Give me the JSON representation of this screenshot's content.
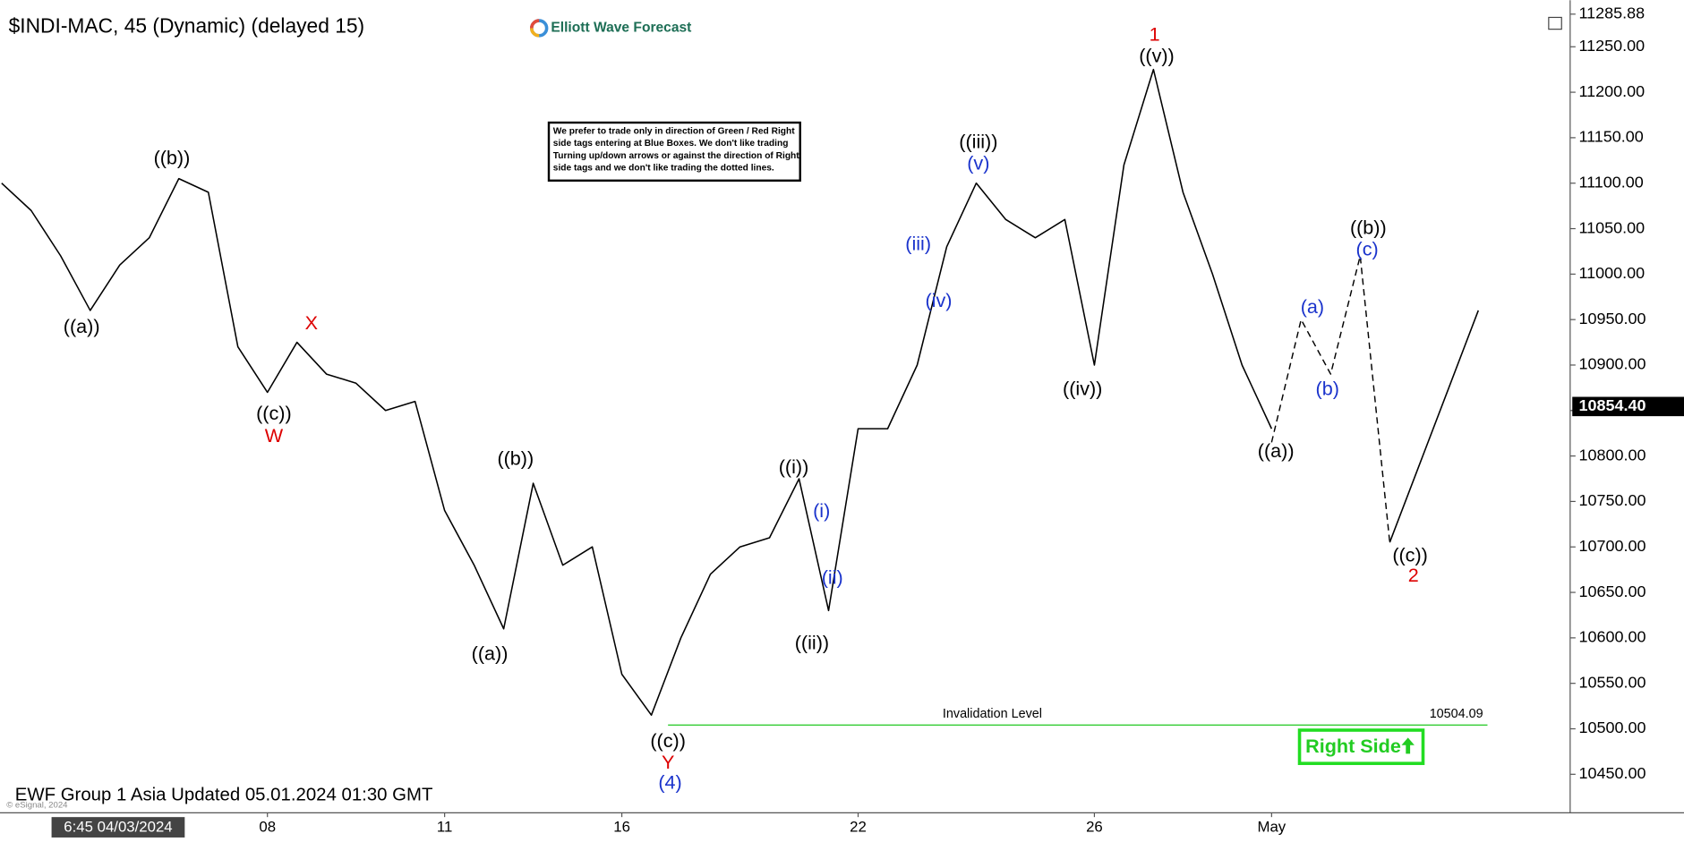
{
  "chart_data": {
    "type": "line",
    "title": "$INDI-MAC, 45 (Dynamic) (delayed 15)",
    "logo": "Elliott Wave Forecast",
    "note_lines": [
      "We prefer to trade only in direction of Green / Red Right",
      "side tags entering at Blue Boxes. We don't like trading",
      "Turning up/down arrows or against the direction of Right",
      "side tags and we don't like trading the dotted lines."
    ],
    "categories": [
      null,
      null,
      null,
      null,
      null,
      null,
      null,
      null,
      null,
      "08",
      null,
      null,
      null,
      null,
      null,
      "11",
      null,
      null,
      null,
      null,
      null,
      "16",
      null,
      null,
      null,
      null,
      null,
      null,
      null,
      "22",
      null,
      null,
      null,
      null,
      null,
      null,
      null,
      "26",
      null,
      null,
      null,
      null,
      null,
      "May",
      null,
      null,
      null,
      null,
      null,
      null,
      null,
      null,
      null
    ],
    "series": [
      {
        "color": "#000000",
        "dash": false,
        "values": [
          11100,
          11070,
          11020,
          10960,
          11010,
          11040,
          11105,
          11090,
          10920,
          10870,
          10925,
          10890,
          10880,
          10850,
          10860,
          10740,
          10680,
          10610,
          10770,
          10680,
          10700,
          10560,
          10515,
          10600,
          10670,
          10700,
          10710,
          10775,
          10630,
          10830,
          10830,
          10900,
          11030,
          11100,
          11060,
          11040,
          11060,
          10900,
          11120,
          11225,
          11090,
          11000,
          10900,
          10830,
          null,
          null,
          null,
          null,
          null,
          null,
          null,
          null,
          null
        ]
      },
      {
        "color": "#000000",
        "dash": true,
        "values": [
          null,
          null,
          null,
          null,
          null,
          null,
          null,
          null,
          null,
          null,
          null,
          null,
          null,
          null,
          null,
          null,
          null,
          null,
          null,
          null,
          null,
          null,
          null,
          null,
          null,
          null,
          null,
          null,
          null,
          null,
          null,
          null,
          null,
          null,
          null,
          null,
          null,
          null,
          null,
          null,
          null,
          null,
          null,
          10815,
          10950,
          10890,
          11020,
          10705,
          null,
          null,
          null,
          null,
          null
        ]
      },
      {
        "color": "#000000",
        "dash": false,
        "values": [
          null,
          null,
          null,
          null,
          null,
          null,
          null,
          null,
          null,
          null,
          null,
          null,
          null,
          null,
          null,
          null,
          null,
          null,
          null,
          null,
          null,
          null,
          null,
          null,
          null,
          null,
          null,
          null,
          null,
          null,
          null,
          null,
          null,
          null,
          null,
          null,
          null,
          null,
          null,
          null,
          null,
          null,
          null,
          null,
          null,
          null,
          null,
          10705,
          10790,
          10875,
          10960,
          null,
          null
        ]
      }
    ],
    "ylim": [
      10410,
      11300
    ],
    "yticks": [
      {
        "value": 10450,
        "label": "10450.00"
      },
      {
        "value": 10500,
        "label": "10500.00"
      },
      {
        "value": 10550,
        "label": "10550.00"
      },
      {
        "value": 10600,
        "label": "10600.00"
      },
      {
        "value": 10650,
        "label": "10650.00"
      },
      {
        "value": 10700,
        "label": "10700.00"
      },
      {
        "value": 10750,
        "label": "10750.00"
      },
      {
        "value": 10800,
        "label": "10800.00"
      },
      {
        "value": 10850,
        "label": "10850.00"
      },
      {
        "value": 10900,
        "label": "10900.00"
      },
      {
        "value": 10950,
        "label": "10950.00"
      },
      {
        "value": 11000,
        "label": "11000.00"
      },
      {
        "value": 11050,
        "label": "11050.00"
      },
      {
        "value": 11100,
        "label": "11100.00"
      },
      {
        "value": 11150,
        "label": "11150.00"
      },
      {
        "value": 11200,
        "label": "11200.00"
      },
      {
        "value": 11250,
        "label": "11250.00"
      }
    ],
    "high_price": 11285.88,
    "last_price": {
      "value": 10854.4,
      "label": "10854.40"
    },
    "invalidation": {
      "text": "Invalidation Level",
      "value": 10504.09,
      "color": "#33cc33"
    },
    "right_side": "Right Side",
    "wave_labels": [
      {
        "text": "((a))",
        "color": "#000000"
      },
      {
        "text": "((b))",
        "color": "#000000"
      },
      {
        "text": "((c))",
        "color": "#000000"
      },
      {
        "text": "W",
        "color": "#dd0000"
      },
      {
        "text": "X",
        "color": "#dd0000"
      },
      {
        "text": "((a))",
        "color": "#000000"
      },
      {
        "text": "((b))",
        "color": "#000000"
      },
      {
        "text": "((c))",
        "color": "#000000"
      },
      {
        "text": "Y",
        "color": "#dd0000"
      },
      {
        "text": "(4)",
        "color": "#1a33cc"
      },
      {
        "text": "((i))",
        "color": "#000000"
      },
      {
        "text": "((ii))",
        "color": "#000000"
      },
      {
        "text": "(i)",
        "color": "#1a33cc"
      },
      {
        "text": "(ii)",
        "color": "#1a33cc"
      },
      {
        "text": "(iii)",
        "color": "#1a33cc"
      },
      {
        "text": "(iv)",
        "color": "#1a33cc"
      },
      {
        "text": "(v)",
        "color": "#1a33cc"
      },
      {
        "text": "((iii))",
        "color": "#000000"
      },
      {
        "text": "((iv))",
        "color": "#000000"
      },
      {
        "text": "((v))",
        "color": "#000000"
      },
      {
        "text": "1",
        "color": "#dd0000"
      },
      {
        "text": "((a))",
        "color": "#000000"
      },
      {
        "text": "(a)",
        "color": "#1a33cc"
      },
      {
        "text": "(b)",
        "color": "#1a33cc"
      },
      {
        "text": "((b))",
        "color": "#000000"
      },
      {
        "text": "(c)",
        "color": "#1a33cc"
      },
      {
        "text": "((c))",
        "color": "#000000"
      },
      {
        "text": "2",
        "color": "#dd0000"
      }
    ],
    "footer": "EWF Group 1 Asia Updated 05.01.2024 01:30 GMT",
    "copyright": "© eSignal, 2024",
    "cursor_date": "6:45 04/03/2024"
  }
}
